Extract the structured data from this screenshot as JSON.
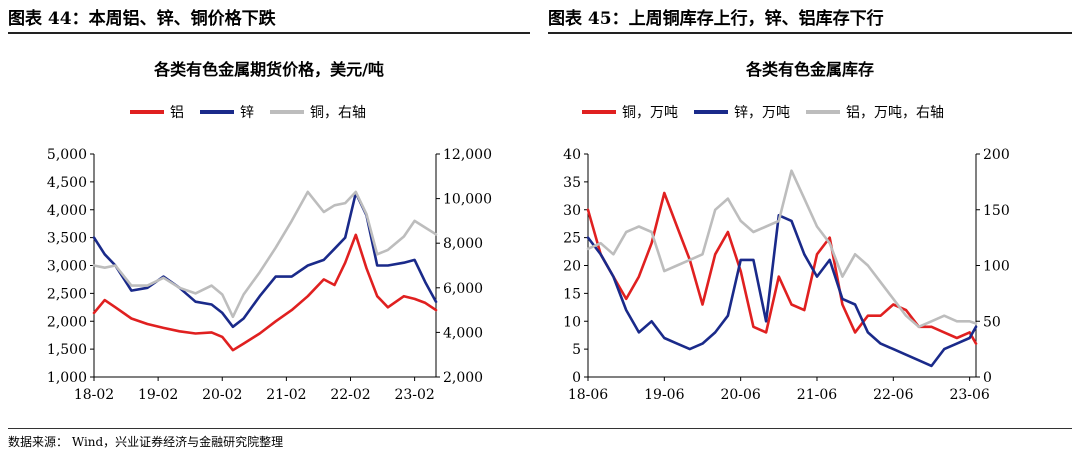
{
  "left_panel": {
    "figure_title": "图表 44：本周铝、锌、铜价格下跌"
  },
  "right_panel": {
    "figure_title": "图表 45：上周铜库存上行，锌、铝库存下行"
  },
  "source_note": "数据来源： Wind，兴业证券经济与金融研究院整理",
  "chart_data": [
    {
      "type": "line",
      "title": "各类有色金属期货价格，美元/吨",
      "x_ticks": [
        "18-02",
        "19-02",
        "20-02",
        "21-02",
        "22-02",
        "23-02"
      ],
      "x_range": [
        "2018-02",
        "2023-06"
      ],
      "y_left": {
        "range": [
          1000,
          5000
        ],
        "ticks": [
          "1,000",
          "1,500",
          "2,000",
          "2,500",
          "3,000",
          "3,500",
          "4,000",
          "4,500",
          "5,000"
        ]
      },
      "y_right": {
        "range": [
          2000,
          12000
        ],
        "ticks": [
          "2,000",
          "4,000",
          "6,000",
          "8,000",
          "10,000",
          "12,000"
        ]
      },
      "grid": false,
      "legend_position": "top",
      "series": [
        {
          "name": "铝",
          "color": "#e02020",
          "axis": "left",
          "x": [
            "2018-02",
            "2018-04",
            "2018-06",
            "2018-09",
            "2018-12",
            "2019-03",
            "2019-06",
            "2019-09",
            "2019-12",
            "2020-02",
            "2020-04",
            "2020-06",
            "2020-09",
            "2020-12",
            "2021-03",
            "2021-06",
            "2021-09",
            "2021-11",
            "2022-01",
            "2022-03",
            "2022-05",
            "2022-07",
            "2022-09",
            "2022-12",
            "2023-02",
            "2023-04",
            "2023-06"
          ],
          "values": [
            2150,
            2380,
            2250,
            2050,
            1950,
            1880,
            1820,
            1780,
            1800,
            1720,
            1480,
            1600,
            1780,
            2000,
            2200,
            2450,
            2750,
            2650,
            3050,
            3550,
            2950,
            2450,
            2250,
            2450,
            2400,
            2330,
            2200
          ]
        },
        {
          "name": "锌",
          "color": "#1a2a8a",
          "axis": "left",
          "x": [
            "2018-02",
            "2018-04",
            "2018-06",
            "2018-09",
            "2018-12",
            "2019-03",
            "2019-06",
            "2019-09",
            "2019-12",
            "2020-02",
            "2020-04",
            "2020-06",
            "2020-09",
            "2020-12",
            "2021-03",
            "2021-06",
            "2021-09",
            "2021-11",
            "2022-01",
            "2022-03",
            "2022-05",
            "2022-07",
            "2022-09",
            "2022-12",
            "2023-02",
            "2023-04",
            "2023-06"
          ],
          "values": [
            3500,
            3200,
            3000,
            2550,
            2600,
            2800,
            2600,
            2350,
            2300,
            2150,
            1900,
            2050,
            2450,
            2800,
            2800,
            3000,
            3100,
            3300,
            3500,
            4300,
            3900,
            3000,
            3000,
            3050,
            3100,
            2700,
            2350
          ]
        },
        {
          "name": "铜，右轴",
          "color": "#bdbdbd",
          "axis": "right",
          "x": [
            "2018-02",
            "2018-04",
            "2018-06",
            "2018-09",
            "2018-12",
            "2019-03",
            "2019-06",
            "2019-09",
            "2019-12",
            "2020-02",
            "2020-04",
            "2020-06",
            "2020-09",
            "2020-12",
            "2021-03",
            "2021-06",
            "2021-09",
            "2021-11",
            "2022-01",
            "2022-03",
            "2022-05",
            "2022-07",
            "2022-09",
            "2022-12",
            "2023-02",
            "2023-04",
            "2023-06"
          ],
          "values": [
            7000,
            6900,
            7000,
            6100,
            6100,
            6450,
            6000,
            5750,
            6100,
            5700,
            4700,
            5700,
            6700,
            7800,
            9000,
            10300,
            9400,
            9700,
            9800,
            10300,
            9300,
            7500,
            7700,
            8300,
            9000,
            8700,
            8400
          ]
        }
      ]
    },
    {
      "type": "line",
      "title": "各类有色金属库存",
      "x_ticks": [
        "18-06",
        "19-06",
        "20-06",
        "21-06",
        "22-06",
        "23-06"
      ],
      "x_range": [
        "2018-06",
        "2023-07"
      ],
      "y_left": {
        "range": [
          0,
          40
        ],
        "ticks": [
          "0",
          "5",
          "10",
          "15",
          "20",
          "25",
          "30",
          "35",
          "40"
        ]
      },
      "y_right": {
        "range": [
          0,
          200
        ],
        "ticks": [
          "0",
          "50",
          "100",
          "150",
          "200"
        ]
      },
      "grid": false,
      "legend_position": "top",
      "series": [
        {
          "name": "铜，万吨",
          "color": "#e02020",
          "axis": "left",
          "x": [
            "2018-06",
            "2018-08",
            "2018-10",
            "2018-12",
            "2019-02",
            "2019-04",
            "2019-06",
            "2019-08",
            "2019-10",
            "2019-12",
            "2020-02",
            "2020-04",
            "2020-06",
            "2020-08",
            "2020-10",
            "2020-12",
            "2021-02",
            "2021-04",
            "2021-06",
            "2021-08",
            "2021-10",
            "2021-12",
            "2022-02",
            "2022-04",
            "2022-06",
            "2022-08",
            "2022-10",
            "2022-12",
            "2023-02",
            "2023-04",
            "2023-06",
            "2023-07"
          ],
          "values": [
            30,
            22,
            18,
            14,
            18,
            24,
            33,
            27,
            21,
            13,
            22,
            26,
            19,
            9,
            8,
            18,
            13,
            12,
            22,
            25,
            13,
            8,
            11,
            11,
            13,
            12,
            9,
            9,
            8,
            7,
            8,
            6
          ]
        },
        {
          "name": "锌，万吨",
          "color": "#1a2a8a",
          "axis": "left",
          "x": [
            "2018-06",
            "2018-08",
            "2018-10",
            "2018-12",
            "2019-02",
            "2019-04",
            "2019-06",
            "2019-08",
            "2019-10",
            "2019-12",
            "2020-02",
            "2020-04",
            "2020-06",
            "2020-08",
            "2020-10",
            "2020-12",
            "2021-02",
            "2021-04",
            "2021-06",
            "2021-08",
            "2021-10",
            "2021-12",
            "2022-02",
            "2022-04",
            "2022-06",
            "2022-08",
            "2022-10",
            "2022-12",
            "2023-02",
            "2023-04",
            "2023-06",
            "2023-07"
          ],
          "values": [
            25,
            22,
            18,
            12,
            8,
            10,
            7,
            6,
            5,
            6,
            8,
            11,
            21,
            21,
            10,
            29,
            28,
            22,
            18,
            21,
            14,
            13,
            8,
            6,
            5,
            4,
            3,
            2,
            5,
            6,
            7,
            9
          ]
        },
        {
          "name": "铝，万吨，右轴",
          "color": "#bdbdbd",
          "axis": "right",
          "x": [
            "2018-06",
            "2018-08",
            "2018-10",
            "2018-12",
            "2019-02",
            "2019-04",
            "2019-06",
            "2019-08",
            "2019-10",
            "2019-12",
            "2020-02",
            "2020-04",
            "2020-06",
            "2020-08",
            "2020-10",
            "2020-12",
            "2021-02",
            "2021-04",
            "2021-06",
            "2021-08",
            "2021-10",
            "2021-12",
            "2022-02",
            "2022-04",
            "2022-06",
            "2022-08",
            "2022-10",
            "2022-12",
            "2023-02",
            "2023-04",
            "2023-06",
            "2023-07"
          ],
          "values": [
            115,
            120,
            110,
            130,
            135,
            130,
            95,
            100,
            105,
            110,
            150,
            160,
            140,
            130,
            135,
            140,
            185,
            160,
            135,
            120,
            90,
            110,
            100,
            85,
            70,
            55,
            45,
            50,
            55,
            50,
            50,
            48
          ]
        }
      ]
    }
  ]
}
